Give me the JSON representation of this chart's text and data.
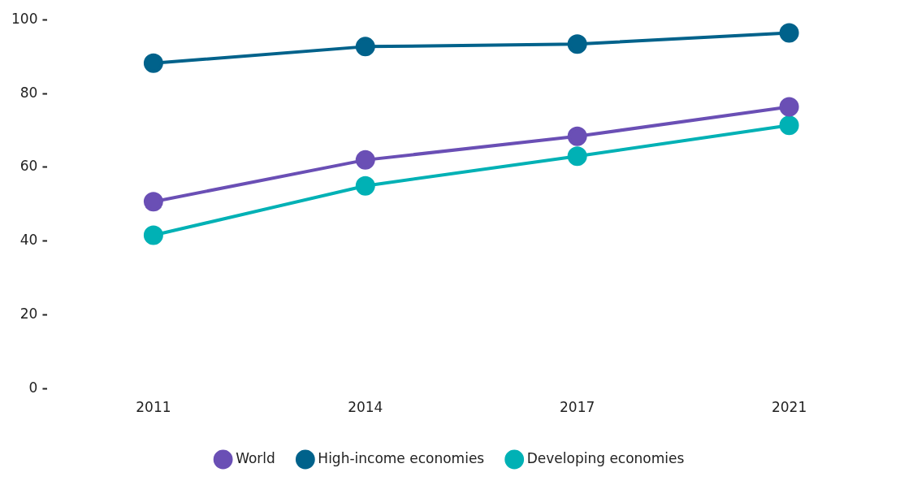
{
  "chart_data": {
    "type": "line",
    "categories": [
      "2011",
      "2014",
      "2017",
      "2021"
    ],
    "series": [
      {
        "name": "World",
        "color": "#6a4fb5",
        "values": [
          50.7,
          62.0,
          68.4,
          76.4
        ]
      },
      {
        "name": "High-income economies",
        "color": "#00628b",
        "values": [
          88.2,
          92.7,
          93.4,
          96.4
        ]
      },
      {
        "name": "Developing economies",
        "color": "#00b1b5",
        "values": [
          41.6,
          55.0,
          63.0,
          71.4
        ]
      }
    ],
    "ylim": [
      0,
      100
    ],
    "yticks": [
      0,
      20,
      40,
      60,
      80,
      100
    ],
    "grid": false,
    "legend": "bottom",
    "marker": "circle",
    "line_style": "solid"
  }
}
